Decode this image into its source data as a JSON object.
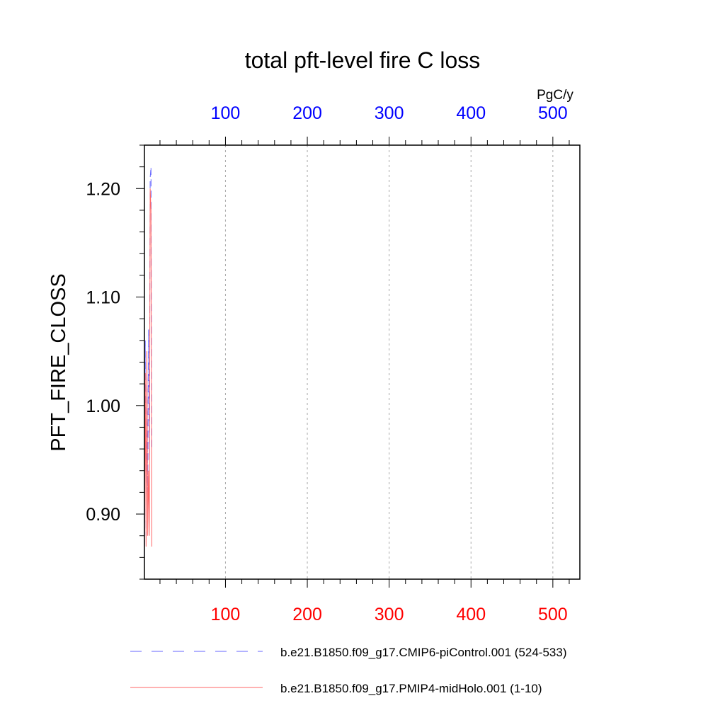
{
  "chart_data": {
    "type": "line",
    "title": "total pft-level fire C loss",
    "ylabel": "PFT_FIRE_CLOSS",
    "top_axis_unit": "PgC/y",
    "xlim": [
      1,
      533
    ],
    "ylim": [
      0.84,
      1.24
    ],
    "x_ticks": [
      100,
      200,
      300,
      400,
      500
    ],
    "y_ticks": [
      0.9,
      1.0,
      1.1,
      1.2
    ],
    "y_tick_labels": [
      "0.90",
      "1.00",
      "1.10",
      "1.20"
    ],
    "grid": "vertical-dashed",
    "colors": {
      "top_axis": "#0000ff",
      "bottom_axis": "#ff0000"
    },
    "series": [
      {
        "name": "b.e21.B1850.f09_g17.CMIP6-piControl.001 (524-533)",
        "color": "#6666ff",
        "dash": "dashed",
        "x": [
          1,
          2,
          3,
          4,
          5,
          6,
          7,
          8,
          9,
          10
        ],
        "y": [
          0.85,
          1.06,
          0.88,
          1.04,
          0.92,
          1.07,
          0.95,
          1.21,
          1.22,
          0.96
        ]
      },
      {
        "name": "b.e21.B1850.f09_g17.PMIP4-midHolo.001 (1-10)",
        "color": "#ff6666",
        "dash": "solid",
        "x": [
          1,
          2,
          3,
          4,
          5,
          6,
          7,
          8,
          9,
          10
        ],
        "y": [
          0.86,
          1.03,
          0.87,
          1.05,
          0.88,
          0.94,
          0.88,
          1.2,
          1.18,
          0.87
        ]
      }
    ]
  }
}
